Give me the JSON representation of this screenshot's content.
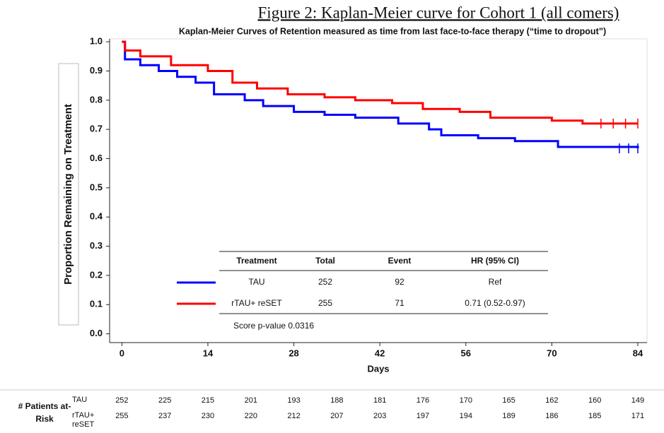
{
  "chart_data": {
    "type": "step",
    "title": "Figure 2: Kaplan-Meier curve for Cohort 1 (all comers)",
    "subtitle": "Kaplan-Meier Curves of Retention measured as time from last face-to-face therapy (“time to dropout”)",
    "y_label": "Proportion Remaining on Treatment",
    "x_label": "Days",
    "xlim": [
      -2,
      85.5
    ],
    "ylim": [
      -0.03,
      1.01
    ],
    "xticks": [
      0,
      14,
      28,
      42,
      56,
      70,
      84
    ],
    "yticks": [
      {
        "value": 0,
        "label": "0.0"
      },
      0.1,
      0.2,
      0.3,
      0.4,
      0.5,
      0.6,
      0.7,
      0.8,
      0.9,
      {
        "value": 1,
        "label": "1.0"
      }
    ],
    "series": [
      {
        "name": "TAU",
        "color": "#0000ff",
        "x": [
          0,
          0.5,
          3,
          6,
          9,
          12,
          15,
          20,
          23,
          28,
          33,
          38,
          45,
          50,
          52,
          58,
          64,
          71,
          84
        ],
        "values": [
          1.0,
          0.94,
          0.92,
          0.9,
          0.88,
          0.86,
          0.82,
          0.8,
          0.78,
          0.76,
          0.75,
          0.74,
          0.72,
          0.7,
          0.68,
          0.67,
          0.66,
          0.64,
          0.635
        ],
        "censor_x": [
          81,
          82.5,
          84
        ],
        "censor_values": [
          0.635,
          0.635,
          0.635
        ]
      },
      {
        "name": "rTAU+ reSET",
        "color": "#ff0000",
        "x": [
          0,
          0.5,
          3,
          8,
          14,
          18,
          22,
          27,
          33,
          38,
          44,
          49,
          55,
          60,
          70,
          75,
          84
        ],
        "values": [
          1.0,
          0.97,
          0.95,
          0.92,
          0.9,
          0.86,
          0.84,
          0.82,
          0.81,
          0.8,
          0.79,
          0.77,
          0.76,
          0.74,
          0.73,
          0.72,
          0.72
        ],
        "censor_x": [
          78,
          80,
          82,
          84
        ],
        "censor_values": [
          0.72,
          0.72,
          0.72,
          0.72
        ]
      }
    ],
    "legend_table": {
      "columns": [
        "Treatment",
        "Total",
        "Event",
        "HR (95% CI)"
      ],
      "rows": [
        [
          "TAU",
          252,
          92,
          "Ref"
        ],
        [
          "rTAU+ reSET",
          255,
          71,
          "0.71 (0.52-0.97)"
        ]
      ],
      "note": "Score p-value 0.0316"
    },
    "at_risk": {
      "label": "# Patients at-Risk",
      "rows": [
        {
          "name": "TAU",
          "values": [
            252,
            225,
            215,
            201,
            193,
            188,
            181,
            176,
            170,
            165,
            162,
            160,
            149
          ]
        },
        {
          "name": "rTAU+ reSET",
          "values": [
            255,
            237,
            230,
            220,
            212,
            207,
            203,
            197,
            194,
            189,
            186,
            185,
            171
          ]
        }
      ]
    }
  }
}
